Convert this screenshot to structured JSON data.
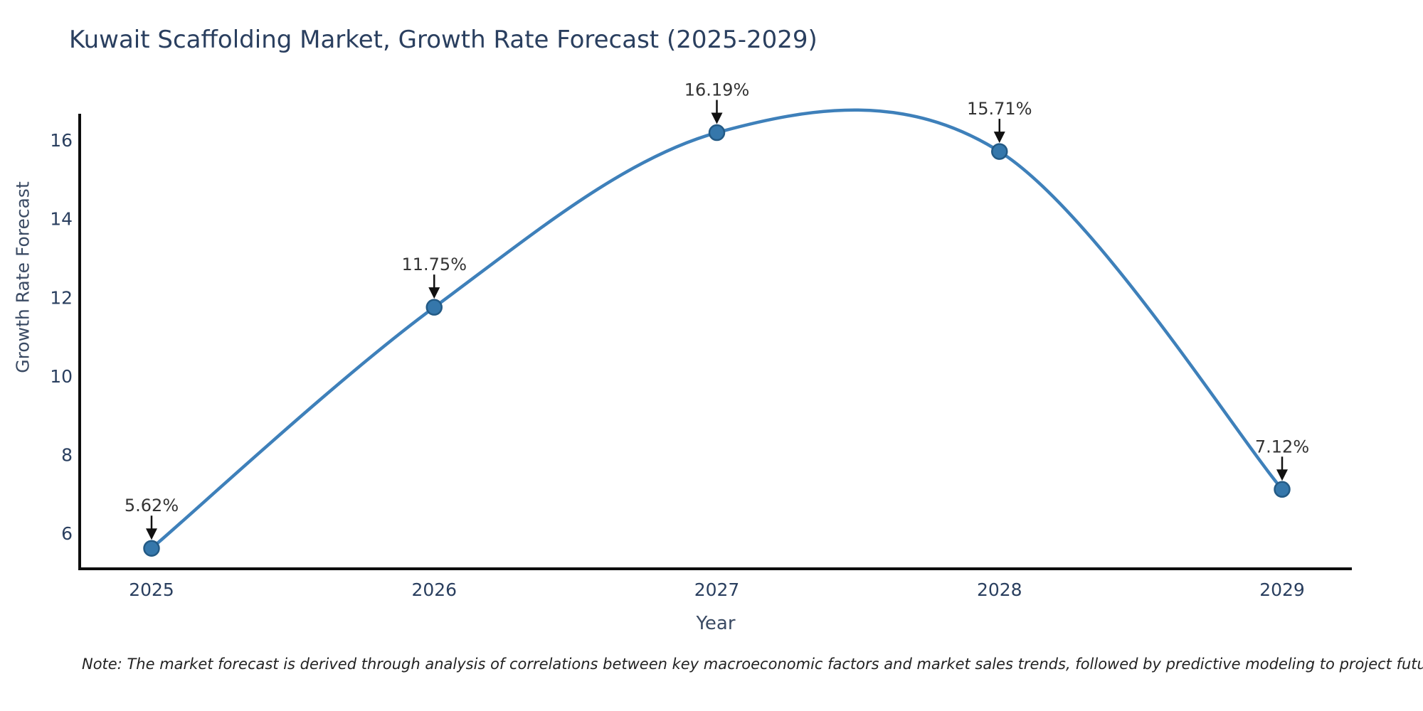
{
  "chart_data": {
    "type": "line",
    "title": "Kuwait Scaffolding Market, Growth Rate Forecast (2025-2029)",
    "xlabel": "Year",
    "ylabel": "Growth Rate Forecast",
    "categories": [
      "2025",
      "2026",
      "2027",
      "2028",
      "2029"
    ],
    "values": [
      5.62,
      11.75,
      16.19,
      15.71,
      7.12
    ],
    "point_labels": [
      "5.62%",
      "11.75%",
      "16.19%",
      "15.71%",
      "7.12%"
    ],
    "yticks": [
      6,
      8,
      10,
      12,
      14,
      16
    ],
    "ylim": [
      5.1,
      16.67
    ],
    "grid": false,
    "legend": "none",
    "colors": {
      "line": "#3e80ba",
      "marker_fill": "#3577ab",
      "marker_edge": "#235a85",
      "axis": "#0d0d0d",
      "tick_text": "#2a3f5f",
      "annotation_text": "#333333",
      "arrow": "#111111",
      "title_text": "#2a3f5f"
    }
  },
  "footnote": {
    "text": "Note: The market forecast is derived through analysis of correlations between key macroeconomic factors and market sales trends, followed by predictive modeling to project future sales"
  }
}
